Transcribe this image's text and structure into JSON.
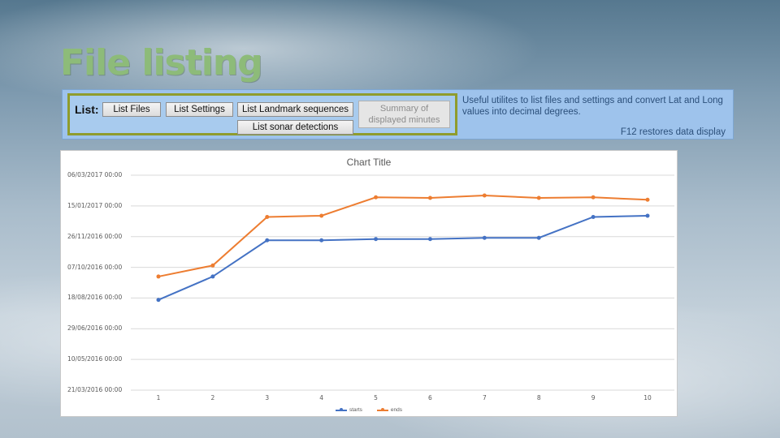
{
  "slide": {
    "title": "File listing"
  },
  "toolbar": {
    "list_label": "List:",
    "buttons": {
      "list_files": "List Files",
      "list_settings": "List Settings",
      "list_landmark_sequences": "List Landmark sequences",
      "list_sonar_detections": "List sonar detections",
      "summary_line1": "Summary of",
      "summary_line2": "displayed minutes"
    },
    "description": "Useful utilites to list files and settings and convert Lat and Long values into decimal degrees.",
    "note": "F12 restores data display",
    "colors": {
      "background": "#9ec3ec",
      "group_border": "#8f9c2d"
    }
  },
  "chart_data": {
    "type": "line",
    "title": "Chart Title",
    "x": [
      1,
      2,
      3,
      4,
      5,
      6,
      7,
      8,
      9,
      10
    ],
    "x_tick_labels": [
      "1",
      "2",
      "3",
      "4",
      "5",
      "6",
      "7",
      "8",
      "9",
      "10"
    ],
    "y_tick_labels": [
      "06/03/2017 00:00",
      "15/01/2017 00:00",
      "26/11/2016 00:00",
      "07/10/2016 00:00",
      "18/08/2016 00:00",
      "29/06/2016 00:00",
      "10/05/2016 00:00",
      "21/03/2016 00:00"
    ],
    "ylim": [
      "2016-03-21",
      "2017-03-06"
    ],
    "series": [
      {
        "name": "starts",
        "color": "#4472c4",
        "values": [
          "2016-08-15",
          "2016-09-22",
          "2016-11-20",
          "2016-11-20",
          "2016-11-22",
          "2016-11-22",
          "2016-11-24",
          "2016-11-24",
          "2016-12-28",
          "2016-12-30"
        ]
      },
      {
        "name": "ends",
        "color": "#ed7d31",
        "values": [
          "2016-09-22",
          "2016-10-10",
          "2016-12-28",
          "2016-12-30",
          "2017-01-29",
          "2017-01-28",
          "2017-02-01",
          "2017-01-28",
          "2017-01-29",
          "2017-01-25"
        ]
      }
    ],
    "grid": true,
    "legend_position": "bottom"
  }
}
